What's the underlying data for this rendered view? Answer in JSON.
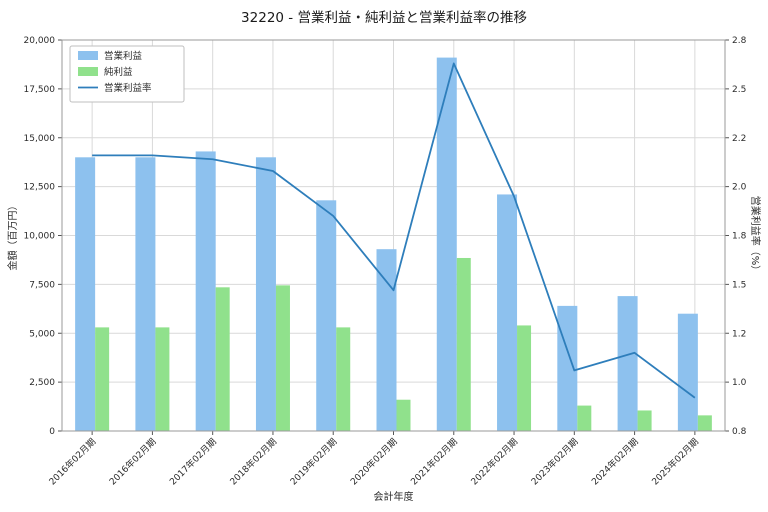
{
  "title": "32220 - 営業利益・純利益と営業利益率の推移",
  "chart_data": {
    "type": "bar",
    "subtype": "grouped-bars-with-line",
    "categories": [
      "2016年02月期",
      "2016年02月期",
      "2017年02月期",
      "2018年02月期",
      "2019年02月期",
      "2020年02月期",
      "2021年02月期",
      "2022年02月期",
      "2023年02月期",
      "2024年02月期",
      "2025年02月期"
    ],
    "series": [
      {
        "name": "営業利益",
        "type": "bar",
        "axis": "left",
        "color": "#8dc1ee",
        "values": [
          14000,
          14000,
          14300,
          14000,
          11800,
          9300,
          19100,
          12100,
          6400,
          6900,
          6000
        ]
      },
      {
        "name": "純利益",
        "type": "bar",
        "axis": "left",
        "color": "#90e18c",
        "values": [
          5300,
          5300,
          7350,
          7450,
          5300,
          1600,
          8850,
          5400,
          1300,
          1050,
          800
        ]
      },
      {
        "name": "営業利益率",
        "type": "line",
        "axis": "right",
        "color": "#2e7ebb",
        "values": [
          2.16,
          2.16,
          2.14,
          2.08,
          1.85,
          1.47,
          2.63,
          1.95,
          1.06,
          1.15,
          0.92
        ]
      }
    ],
    "left_axis": {
      "label": "金額（百万円）",
      "min": 0,
      "max": 20000,
      "ticks": [
        "0",
        "2,500",
        "5,000",
        "7,500",
        "10,000",
        "12,500",
        "15,000",
        "17,500",
        "20,000"
      ]
    },
    "right_axis": {
      "label": "営業利益率（%）",
      "min": 0.75,
      "max": 2.75,
      "ticks": [
        "0.8",
        "1.0",
        "1.2",
        "1.5",
        "1.8",
        "2.0",
        "2.2",
        "2.5",
        "2.8"
      ]
    },
    "xlabel": "会計年度",
    "grid": true,
    "legend_position": "upper-left",
    "legend_entries": [
      "営業利益",
      "純利益",
      "営業利益率"
    ]
  }
}
